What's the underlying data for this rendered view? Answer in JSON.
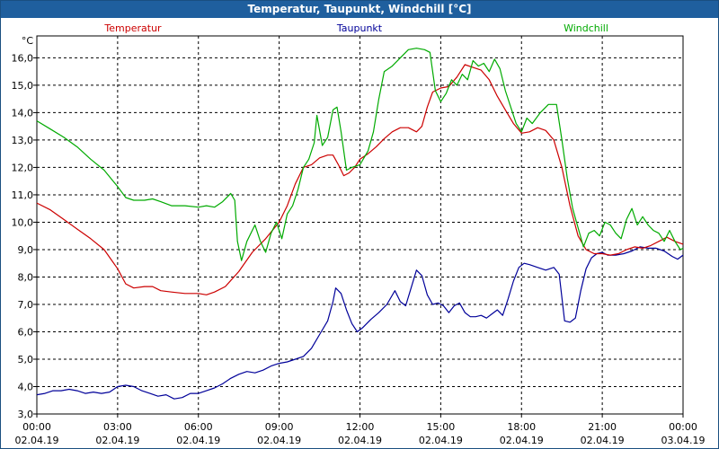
{
  "window": {
    "title": "Temperatur, Taupunkt, Windchill [°C]"
  },
  "chart_data": {
    "type": "line",
    "title": "Temperatur, Taupunkt, Windchill [°C]",
    "ylabel": "°C",
    "ylim": [
      3.0,
      16.8
    ],
    "yticks": [
      "3,0",
      "4,0",
      "5,0",
      "6,0",
      "7,0",
      "8,0",
      "9,0",
      "10,0",
      "11,0",
      "12,0",
      "13,0",
      "14,0",
      "15,0",
      "16,0"
    ],
    "ytick_values": [
      3,
      4,
      5,
      6,
      7,
      8,
      9,
      10,
      11,
      12,
      13,
      14,
      15,
      16
    ],
    "xlim": [
      0,
      24
    ],
    "xticks": [
      {
        "time": "00:00",
        "date": "02.04.19"
      },
      {
        "time": "03:00",
        "date": "02.04.19"
      },
      {
        "time": "06:00",
        "date": "02.04.19"
      },
      {
        "time": "09:00",
        "date": "02.04.19"
      },
      {
        "time": "12:00",
        "date": "02.04.19"
      },
      {
        "time": "15:00",
        "date": "02.04.19"
      },
      {
        "time": "18:00",
        "date": "02.04.19"
      },
      {
        "time": "21:00",
        "date": "02.04.19"
      },
      {
        "time": "00:00",
        "date": "03.04.19"
      }
    ],
    "grid": true,
    "legend_position": "top",
    "series": [
      {
        "name": "Temperatur",
        "color": "#cc0000",
        "points": [
          [
            0,
            10.7
          ],
          [
            0.5,
            10.45
          ],
          [
            1,
            10.1
          ],
          [
            1.5,
            9.75
          ],
          [
            2,
            9.4
          ],
          [
            2.5,
            9.0
          ],
          [
            3,
            8.3
          ],
          [
            3.3,
            7.75
          ],
          [
            3.6,
            7.6
          ],
          [
            4,
            7.65
          ],
          [
            4.3,
            7.65
          ],
          [
            4.6,
            7.5
          ],
          [
            5,
            7.45
          ],
          [
            5.5,
            7.4
          ],
          [
            6,
            7.4
          ],
          [
            6.3,
            7.35
          ],
          [
            6.6,
            7.45
          ],
          [
            7,
            7.65
          ],
          [
            7.5,
            8.2
          ],
          [
            8,
            8.9
          ],
          [
            8.5,
            9.4
          ],
          [
            9,
            10.0
          ],
          [
            9.3,
            10.6
          ],
          [
            9.6,
            11.4
          ],
          [
            9.9,
            12.0
          ],
          [
            10.2,
            12.1
          ],
          [
            10.5,
            12.35
          ],
          [
            10.8,
            12.45
          ],
          [
            11,
            12.45
          ],
          [
            11.2,
            12.1
          ],
          [
            11.4,
            11.7
          ],
          [
            11.6,
            11.8
          ],
          [
            11.8,
            12.0
          ],
          [
            12,
            12.3
          ],
          [
            12.3,
            12.5
          ],
          [
            12.6,
            12.75
          ],
          [
            12.9,
            13.05
          ],
          [
            13.2,
            13.3
          ],
          [
            13.5,
            13.45
          ],
          [
            13.8,
            13.45
          ],
          [
            14.1,
            13.3
          ],
          [
            14.3,
            13.5
          ],
          [
            14.5,
            14.2
          ],
          [
            14.7,
            14.75
          ],
          [
            15,
            14.9
          ],
          [
            15.3,
            14.95
          ],
          [
            15.6,
            15.3
          ],
          [
            15.9,
            15.75
          ],
          [
            16.2,
            15.65
          ],
          [
            16.5,
            15.55
          ],
          [
            16.8,
            15.2
          ],
          [
            17.1,
            14.6
          ],
          [
            17.4,
            14.1
          ],
          [
            17.7,
            13.6
          ],
          [
            18,
            13.25
          ],
          [
            18.3,
            13.3
          ],
          [
            18.6,
            13.45
          ],
          [
            18.9,
            13.35
          ],
          [
            19.2,
            13.0
          ],
          [
            19.5,
            12.0
          ],
          [
            19.8,
            10.6
          ],
          [
            20.1,
            9.5
          ],
          [
            20.4,
            9.0
          ],
          [
            20.7,
            8.85
          ],
          [
            21,
            8.85
          ],
          [
            21.3,
            8.8
          ],
          [
            21.6,
            8.85
          ],
          [
            21.9,
            9.0
          ],
          [
            22.2,
            9.1
          ],
          [
            22.5,
            9.05
          ],
          [
            22.8,
            9.15
          ],
          [
            23.1,
            9.3
          ],
          [
            23.4,
            9.45
          ],
          [
            23.7,
            9.3
          ],
          [
            24,
            9.2
          ]
        ]
      },
      {
        "name": "Taupunkt",
        "color": "#000099",
        "points": [
          [
            0,
            3.7
          ],
          [
            0.3,
            3.75
          ],
          [
            0.6,
            3.85
          ],
          [
            0.9,
            3.85
          ],
          [
            1.2,
            3.9
          ],
          [
            1.5,
            3.85
          ],
          [
            1.8,
            3.75
          ],
          [
            2.1,
            3.8
          ],
          [
            2.4,
            3.75
          ],
          [
            2.7,
            3.8
          ],
          [
            3,
            4.0
          ],
          [
            3.3,
            4.05
          ],
          [
            3.6,
            4.0
          ],
          [
            3.9,
            3.85
          ],
          [
            4.2,
            3.75
          ],
          [
            4.5,
            3.65
          ],
          [
            4.8,
            3.7
          ],
          [
            5.1,
            3.55
          ],
          [
            5.4,
            3.6
          ],
          [
            5.7,
            3.75
          ],
          [
            6,
            3.75
          ],
          [
            6.3,
            3.85
          ],
          [
            6.6,
            3.95
          ],
          [
            6.9,
            4.1
          ],
          [
            7.2,
            4.3
          ],
          [
            7.5,
            4.45
          ],
          [
            7.8,
            4.55
          ],
          [
            8.1,
            4.5
          ],
          [
            8.4,
            4.6
          ],
          [
            8.7,
            4.75
          ],
          [
            9,
            4.85
          ],
          [
            9.3,
            4.9
          ],
          [
            9.6,
            5.0
          ],
          [
            9.9,
            5.1
          ],
          [
            10.2,
            5.4
          ],
          [
            10.5,
            5.9
          ],
          [
            10.8,
            6.4
          ],
          [
            11,
            7.1
          ],
          [
            11.1,
            7.6
          ],
          [
            11.3,
            7.4
          ],
          [
            11.5,
            6.8
          ],
          [
            11.7,
            6.3
          ],
          [
            11.9,
            6.0
          ],
          [
            12.1,
            6.15
          ],
          [
            12.4,
            6.45
          ],
          [
            12.7,
            6.7
          ],
          [
            13,
            7.0
          ],
          [
            13.3,
            7.5
          ],
          [
            13.5,
            7.1
          ],
          [
            13.7,
            6.95
          ],
          [
            13.9,
            7.6
          ],
          [
            14.1,
            8.25
          ],
          [
            14.3,
            8.05
          ],
          [
            14.5,
            7.35
          ],
          [
            14.7,
            7.0
          ],
          [
            14.9,
            7.05
          ],
          [
            15.1,
            6.95
          ],
          [
            15.3,
            6.7
          ],
          [
            15.5,
            6.95
          ],
          [
            15.7,
            7.05
          ],
          [
            15.9,
            6.7
          ],
          [
            16.1,
            6.55
          ],
          [
            16.3,
            6.55
          ],
          [
            16.5,
            6.6
          ],
          [
            16.7,
            6.5
          ],
          [
            16.9,
            6.65
          ],
          [
            17.1,
            6.8
          ],
          [
            17.3,
            6.6
          ],
          [
            17.5,
            7.2
          ],
          [
            17.7,
            7.85
          ],
          [
            17.9,
            8.35
          ],
          [
            18.1,
            8.5
          ],
          [
            18.3,
            8.45
          ],
          [
            18.6,
            8.35
          ],
          [
            18.9,
            8.25
          ],
          [
            19.2,
            8.35
          ],
          [
            19.4,
            8.1
          ],
          [
            19.6,
            6.4
          ],
          [
            19.8,
            6.35
          ],
          [
            20,
            6.5
          ],
          [
            20.2,
            7.5
          ],
          [
            20.4,
            8.3
          ],
          [
            20.6,
            8.7
          ],
          [
            20.8,
            8.85
          ],
          [
            21,
            8.9
          ],
          [
            21.2,
            8.8
          ],
          [
            21.5,
            8.8
          ],
          [
            21.8,
            8.85
          ],
          [
            22.1,
            8.95
          ],
          [
            22.4,
            9.1
          ],
          [
            22.7,
            9.05
          ],
          [
            23,
            9.05
          ],
          [
            23.3,
            8.95
          ],
          [
            23.6,
            8.75
          ],
          [
            23.8,
            8.65
          ],
          [
            24,
            8.8
          ]
        ]
      },
      {
        "name": "Windchill",
        "color": "#00aa00",
        "points": [
          [
            0,
            13.7
          ],
          [
            0.5,
            13.4
          ],
          [
            1,
            13.1
          ],
          [
            1.5,
            12.75
          ],
          [
            2,
            12.3
          ],
          [
            2.5,
            11.9
          ],
          [
            3,
            11.3
          ],
          [
            3.3,
            10.9
          ],
          [
            3.6,
            10.8
          ],
          [
            4,
            10.8
          ],
          [
            4.3,
            10.85
          ],
          [
            4.6,
            10.75
          ],
          [
            5,
            10.6
          ],
          [
            5.5,
            10.6
          ],
          [
            6,
            10.55
          ],
          [
            6.3,
            10.6
          ],
          [
            6.6,
            10.55
          ],
          [
            6.9,
            10.75
          ],
          [
            7.2,
            11.05
          ],
          [
            7.35,
            10.8
          ],
          [
            7.45,
            9.3
          ],
          [
            7.6,
            8.6
          ],
          [
            7.8,
            9.3
          ],
          [
            8.1,
            9.9
          ],
          [
            8.3,
            9.3
          ],
          [
            8.5,
            8.9
          ],
          [
            8.7,
            9.6
          ],
          [
            8.9,
            10.0
          ],
          [
            9.1,
            9.4
          ],
          [
            9.3,
            10.3
          ],
          [
            9.5,
            10.6
          ],
          [
            9.7,
            11.2
          ],
          [
            9.9,
            12.0
          ],
          [
            10.1,
            12.3
          ],
          [
            10.3,
            12.9
          ],
          [
            10.4,
            13.9
          ],
          [
            10.6,
            12.8
          ],
          [
            10.8,
            13.1
          ],
          [
            11,
            14.1
          ],
          [
            11.15,
            14.2
          ],
          [
            11.3,
            13.3
          ],
          [
            11.5,
            11.9
          ],
          [
            11.7,
            12.0
          ],
          [
            12,
            12.1
          ],
          [
            12.3,
            12.6
          ],
          [
            12.5,
            13.3
          ],
          [
            12.7,
            14.5
          ],
          [
            12.9,
            15.5
          ],
          [
            13.2,
            15.7
          ],
          [
            13.5,
            16.0
          ],
          [
            13.8,
            16.3
          ],
          [
            14.1,
            16.35
          ],
          [
            14.4,
            16.3
          ],
          [
            14.6,
            16.2
          ],
          [
            14.8,
            14.8
          ],
          [
            15,
            14.4
          ],
          [
            15.2,
            14.7
          ],
          [
            15.4,
            15.2
          ],
          [
            15.6,
            15.0
          ],
          [
            15.8,
            15.4
          ],
          [
            16,
            15.2
          ],
          [
            16.2,
            15.9
          ],
          [
            16.4,
            15.7
          ],
          [
            16.6,
            15.8
          ],
          [
            16.8,
            15.5
          ],
          [
            17,
            15.95
          ],
          [
            17.2,
            15.6
          ],
          [
            17.4,
            14.8
          ],
          [
            17.6,
            14.2
          ],
          [
            17.8,
            13.6
          ],
          [
            18,
            13.3
          ],
          [
            18.2,
            13.8
          ],
          [
            18.4,
            13.6
          ],
          [
            18.7,
            14.0
          ],
          [
            19,
            14.3
          ],
          [
            19.3,
            14.3
          ],
          [
            19.5,
            13.0
          ],
          [
            19.7,
            11.6
          ],
          [
            19.9,
            10.5
          ],
          [
            20.1,
            9.8
          ],
          [
            20.3,
            9.1
          ],
          [
            20.5,
            9.6
          ],
          [
            20.7,
            9.7
          ],
          [
            20.9,
            9.5
          ],
          [
            21.1,
            10.0
          ],
          [
            21.3,
            9.9
          ],
          [
            21.5,
            9.6
          ],
          [
            21.7,
            9.4
          ],
          [
            21.9,
            10.1
          ],
          [
            22.1,
            10.5
          ],
          [
            22.3,
            9.9
          ],
          [
            22.5,
            10.2
          ],
          [
            22.7,
            9.9
          ],
          [
            22.9,
            9.7
          ],
          [
            23.1,
            9.6
          ],
          [
            23.3,
            9.3
          ],
          [
            23.5,
            9.7
          ],
          [
            23.7,
            9.3
          ],
          [
            23.9,
            9.0
          ],
          [
            24,
            9.05
          ]
        ]
      }
    ]
  }
}
